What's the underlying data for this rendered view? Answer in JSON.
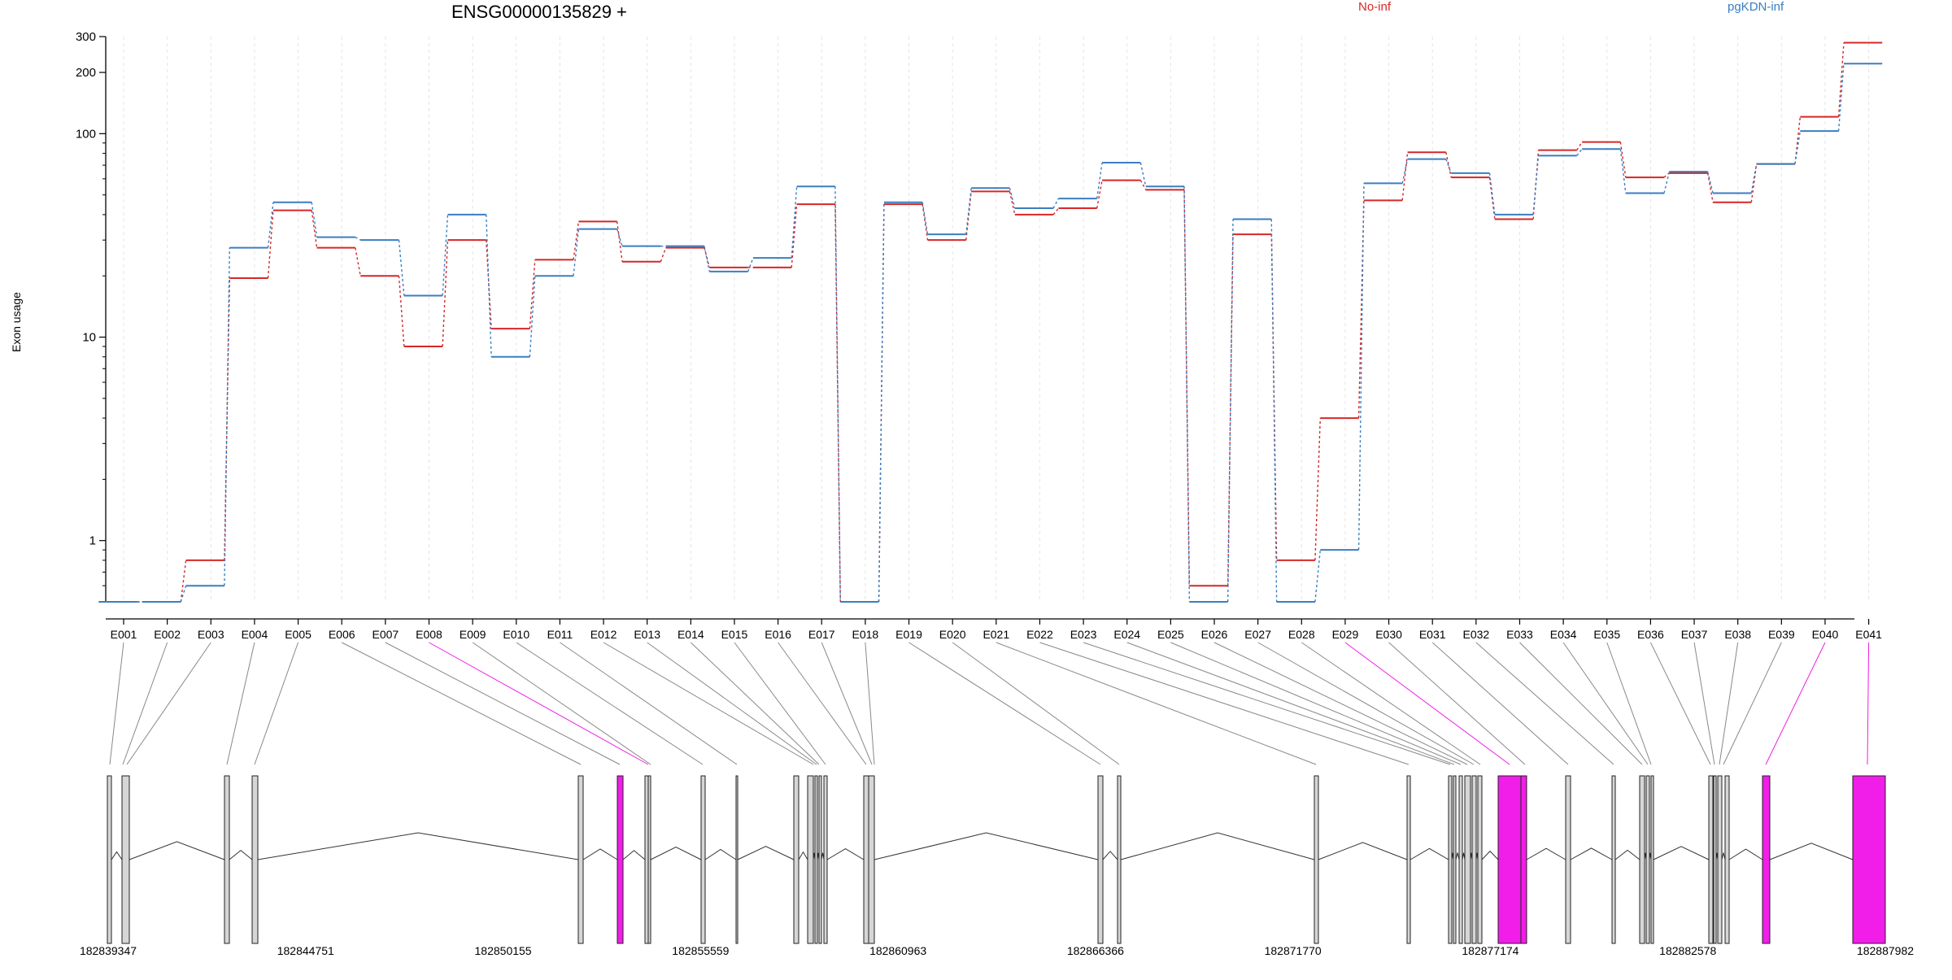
{
  "title": "ENSG00000135829 +",
  "legend": [
    {
      "name": "No-inf",
      "color": "#d62728"
    },
    {
      "name": "pgKDN-inf",
      "color": "#3a7ec0"
    }
  ],
  "colors": {
    "highlight": "#f01ee8",
    "exon_fill": "#d6d6d6",
    "connector": "#888888",
    "grid": "#e4e4e4"
  },
  "chart_data": [
    {
      "type": "line",
      "subtype": "step",
      "title": "ENSG00000135829 +",
      "ylabel": "Exon usage",
      "xlabel": "",
      "yscale": "log",
      "ylim": [
        0.5,
        300
      ],
      "yticks": [
        1,
        10,
        100,
        200,
        300
      ],
      "categories": [
        "E001",
        "E002",
        "E003",
        "E004",
        "E005",
        "E006",
        "E007",
        "E008",
        "E009",
        "E010",
        "E011",
        "E012",
        "E013",
        "E014",
        "E015",
        "E016",
        "E017",
        "E018",
        "E019",
        "E020",
        "E021",
        "E022",
        "E023",
        "E024",
        "E025",
        "E026",
        "E027",
        "E028",
        "E029",
        "E030",
        "E031",
        "E032",
        "E033",
        "E034",
        "E035",
        "E036",
        "E037",
        "E038",
        "E039",
        "E040",
        "E041"
      ],
      "series": [
        {
          "name": "No-inf",
          "color": "#d62728",
          "values": [
            0.5,
            0.5,
            0.8,
            19.5,
            42,
            27.5,
            20,
            9,
            30,
            11,
            24,
            37,
            23.5,
            27.5,
            22,
            22,
            45,
            0.5,
            45,
            30,
            52,
            40,
            43,
            59,
            53,
            0.6,
            32,
            0.8,
            4,
            47,
            81,
            61,
            38,
            83,
            91,
            61,
            64,
            46,
            71,
            121,
            280
          ]
        },
        {
          "name": "pgKDN-inf",
          "color": "#3a7ec0",
          "values": [
            0.5,
            0.5,
            0.6,
            27.5,
            46,
            31,
            30,
            16,
            40,
            8,
            20,
            34,
            28,
            28,
            21,
            24.5,
            55,
            0.5,
            46,
            32,
            54,
            43,
            48,
            72,
            55,
            0.5,
            38,
            0.5,
            0.9,
            57,
            75,
            64,
            40,
            78,
            84,
            51,
            65,
            51,
            71,
            103,
            221
          ]
        }
      ],
      "grid": "vertical-dashed",
      "legend_position": "top"
    },
    {
      "type": "gene-model",
      "xlim": [
        182839347,
        182887982
      ],
      "xticks": [
        182839347,
        182844751,
        182850155,
        182855559,
        182860963,
        182866366,
        182871770,
        182877174,
        182882578,
        182887982
      ],
      "highlighted_exons": [
        "E008",
        "E029",
        "E040",
        "E041"
      ]
    }
  ]
}
